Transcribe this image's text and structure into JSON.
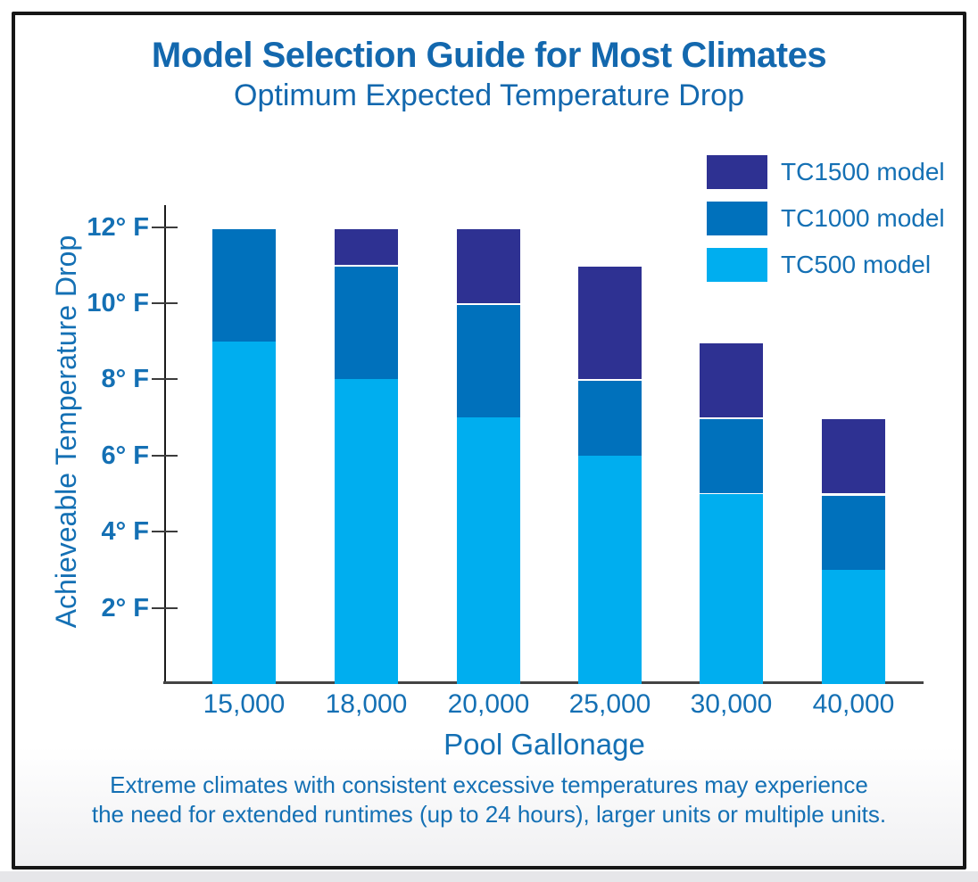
{
  "page": {
    "title": "Model Selection Guide for Most Climates",
    "subtitle": "Optimum Expected Temperature Drop",
    "footnote_line1": "Extreme climates with consistent excessive temperatures may experience",
    "footnote_line2": "the need for extended runtimes (up to 24 hours), larger units or multiple units."
  },
  "colors": {
    "tc1500": "#2E3192",
    "tc1000": "#0071BC",
    "tc500": "#00AEEF",
    "text_blue": "#1470B4",
    "axis_y": "#1B1B1B",
    "axis_x": "#444444",
    "frame_border": "#161616"
  },
  "chart_data": {
    "type": "bar",
    "stacked": true,
    "title": "Model Selection Guide for Most Climates",
    "subtitle": "Optimum Expected Temperature Drop",
    "xlabel": "Pool Gallonage",
    "ylabel": "Achieveable Temperature Drop",
    "categories": [
      "15,000",
      "18,000",
      "20,000",
      "25,000",
      "30,000",
      "40,000"
    ],
    "series": [
      {
        "name": "TC500 model",
        "color": "#00AEEF",
        "values": [
          9,
          8,
          7,
          6,
          5,
          3
        ]
      },
      {
        "name": "TC1000 model",
        "color": "#0071BC",
        "values": [
          3,
          3,
          3,
          2,
          2,
          2
        ]
      },
      {
        "name": "TC1500 model",
        "color": "#2E3192",
        "values": [
          0,
          1,
          2,
          3,
          2,
          2
        ]
      }
    ],
    "stack_totals": [
      12,
      12,
      12,
      11,
      9,
      7
    ],
    "y_ticks": [
      "2° F",
      "4° F",
      "6° F",
      "8° F",
      "10° F",
      "12° F"
    ],
    "y_tick_values": [
      2,
      4,
      6,
      8,
      10,
      12
    ],
    "ylim": [
      0,
      12
    ],
    "yunit": "°F",
    "legend": [
      "TC1500 model",
      "TC1000 model",
      "TC500 model"
    ],
    "legend_position": "top-right",
    "grid": false
  }
}
